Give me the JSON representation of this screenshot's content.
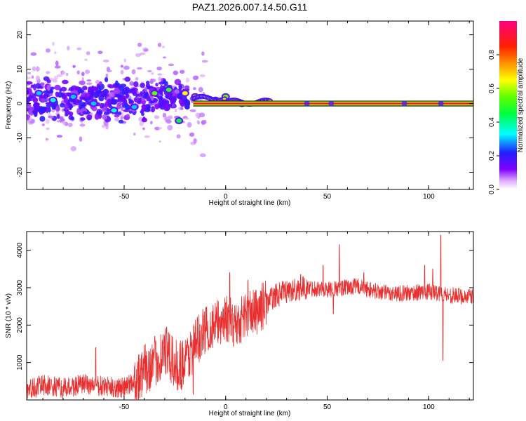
{
  "title": "PAZ1.2026.007.14.50.G11",
  "chart_data": [
    {
      "type": "heatmap",
      "name": "spectrogram",
      "xlabel": "Height of straight line (km)",
      "ylabel": "Frequency (Hz)",
      "xlim": [
        -98,
        122
      ],
      "ylim": [
        -25,
        24
      ],
      "xticks": [
        -50,
        0,
        50,
        100
      ],
      "yticks": [
        20,
        10,
        0,
        -10,
        -20
      ],
      "colorbar": {
        "label": "Normalized spectral amplitude",
        "range": [
          0,
          1
        ],
        "ticks": [
          0.0,
          0.2,
          0.4,
          0.6,
          0.8
        ],
        "colors": [
          "#ffffff",
          "#d070ff",
          "#8000ff",
          "#2020ff",
          "#00ffff",
          "#00ff00",
          "#ffff00",
          "#ff8000",
          "#ff0000",
          "#ff0080"
        ]
      },
      "main_line": {
        "x_start": -16,
        "x_end": 122,
        "frequency": 0,
        "amplitude": 0.95
      },
      "clusters": [
        {
          "x": -92,
          "f": 3,
          "amplitude": 0.3
        },
        {
          "x": -85,
          "f": 1,
          "amplitude": 0.35
        },
        {
          "x": -75,
          "f": 2,
          "amplitude": 0.3
        },
        {
          "x": -65,
          "f": 0,
          "amplitude": 0.3
        },
        {
          "x": -55,
          "f": -2,
          "amplitude": 0.35
        },
        {
          "x": -45,
          "f": -1,
          "amplitude": 0.3
        },
        {
          "x": -35,
          "f": 3,
          "amplitude": 0.55
        },
        {
          "x": -28,
          "f": 4,
          "amplitude": 0.5
        },
        {
          "x": -23,
          "f": -5,
          "amplitude": 0.45
        },
        {
          "x": -20,
          "f": 3,
          "amplitude": 0.65
        },
        {
          "x": -15,
          "f": 2,
          "amplitude": 0.7
        },
        {
          "x": -5,
          "f": 1,
          "amplitude": 0.75
        },
        {
          "x": 0,
          "f": 2,
          "amplitude": 0.55
        },
        {
          "x": 8,
          "f": 0,
          "amplitude": 0.8
        }
      ],
      "scatter_range": [
        -98,
        -10
      ],
      "scatter_f_range": [
        -25,
        20
      ]
    },
    {
      "type": "line",
      "name": "snr",
      "xlabel": "Height of straight line (km)",
      "ylabel": "SNR (10 * v/v)",
      "xlim": [
        -98,
        122
      ],
      "ylim": [
        0,
        4500
      ],
      "xticks": [
        -50,
        0,
        50,
        100
      ],
      "yticks": [
        1000,
        2000,
        3000,
        4000
      ],
      "color": "#e83030",
      "series": [
        {
          "x": -98,
          "y": 250
        },
        {
          "x": -90,
          "y": 400
        },
        {
          "x": -80,
          "y": 300
        },
        {
          "x": -70,
          "y": 420
        },
        {
          "x": -60,
          "y": 350
        },
        {
          "x": -50,
          "y": 320
        },
        {
          "x": -45,
          "y": 500
        },
        {
          "x": -40,
          "y": 800
        },
        {
          "x": -35,
          "y": 1000
        },
        {
          "x": -30,
          "y": 1300
        },
        {
          "x": -25,
          "y": 900
        },
        {
          "x": -20,
          "y": 1000
        },
        {
          "x": -15,
          "y": 1500
        },
        {
          "x": -10,
          "y": 1900
        },
        {
          "x": -5,
          "y": 2000
        },
        {
          "x": 0,
          "y": 2200
        },
        {
          "x": 5,
          "y": 2000
        },
        {
          "x": 10,
          "y": 2300
        },
        {
          "x": 15,
          "y": 2350
        },
        {
          "x": 20,
          "y": 2600
        },
        {
          "x": 25,
          "y": 2800
        },
        {
          "x": 30,
          "y": 2900
        },
        {
          "x": 40,
          "y": 3000
        },
        {
          "x": 50,
          "y": 2950
        },
        {
          "x": 60,
          "y": 3000
        },
        {
          "x": 65,
          "y": 3050
        },
        {
          "x": 70,
          "y": 2950
        },
        {
          "x": 80,
          "y": 2850
        },
        {
          "x": 90,
          "y": 2850
        },
        {
          "x": 100,
          "y": 2900
        },
        {
          "x": 110,
          "y": 2800
        },
        {
          "x": 122,
          "y": 2750
        }
      ],
      "spikes": [
        {
          "x": -64,
          "y": 1400
        },
        {
          "x": -29,
          "y": 1950
        },
        {
          "x": 2,
          "y": 3400
        },
        {
          "x": 11,
          "y": 3200
        },
        {
          "x": 37,
          "y": 3350
        },
        {
          "x": 48,
          "y": 3600
        },
        {
          "x": 56,
          "y": 4150
        },
        {
          "x": 68,
          "y": 3400
        },
        {
          "x": 98,
          "y": 3600
        },
        {
          "x": 102,
          "y": 3500
        },
        {
          "x": 106,
          "y": 4400
        }
      ],
      "dips": [
        {
          "x": 53,
          "y": 2300
        },
        {
          "x": 107,
          "y": 1050
        },
        {
          "x": -16,
          "y": 150
        }
      ]
    }
  ]
}
